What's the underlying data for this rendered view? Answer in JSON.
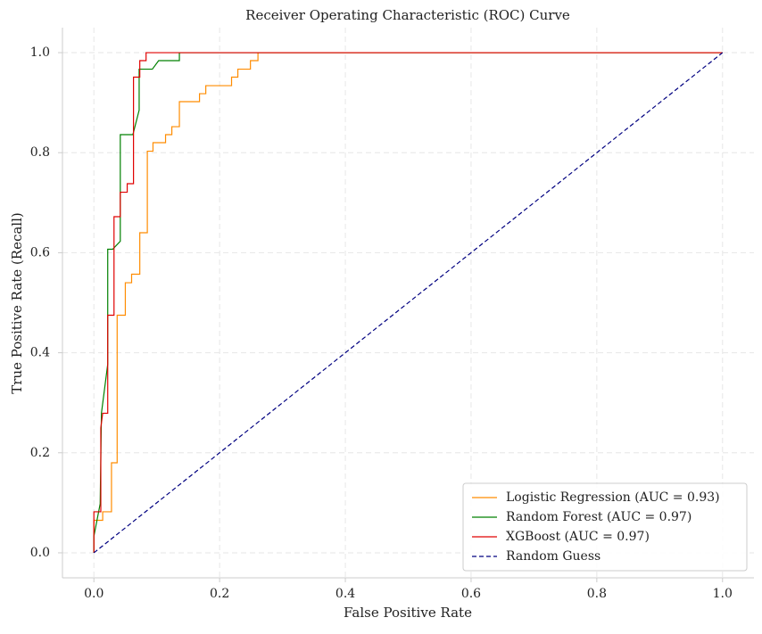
{
  "chart_data": {
    "type": "line",
    "title": "Receiver Operating Characteristic (ROC) Curve",
    "x_label": "False Positive Rate",
    "y_label": "True Positive Rate (Recall)",
    "xlim": [
      -0.05,
      1.05
    ],
    "ylim": [
      -0.05,
      1.05
    ],
    "xticks": [
      {
        "value": 0,
        "label": "0.0"
      },
      0.2,
      0.4,
      0.6,
      0.8,
      {
        "value": 1,
        "label": "1.0"
      }
    ],
    "yticks": [
      {
        "value": 0,
        "label": "0.0"
      },
      0.2,
      0.4,
      0.6,
      0.8,
      {
        "value": 1,
        "label": "1.0"
      }
    ],
    "grid": true,
    "legend": "lower right",
    "series": [
      {
        "name": "Logistic Regression (AUC = 0.93)",
        "color": "#ff8c00",
        "dash": "solid",
        "x": [
          0,
          0,
          0.014,
          0.014,
          0.028,
          0.028,
          0.037,
          0.037,
          0.05,
          0.05,
          0.06,
          0.06,
          0.073,
          0.073,
          0.085,
          0.085,
          0.094,
          0.094,
          0.114,
          0.114,
          0.124,
          0.124,
          0.136,
          0.136,
          0.168,
          0.168,
          0.178,
          0.178,
          0.219,
          0.219,
          0.229,
          0.229,
          0.249,
          0.249,
          0.261,
          0.261,
          1
        ],
        "values": [
          0,
          0.065,
          0.065,
          0.082,
          0.082,
          0.18,
          0.18,
          0.475,
          0.475,
          0.54,
          0.54,
          0.557,
          0.557,
          0.64,
          0.64,
          0.803,
          0.803,
          0.82,
          0.82,
          0.836,
          0.836,
          0.852,
          0.852,
          0.902,
          0.902,
          0.918,
          0.918,
          0.934,
          0.934,
          0.951,
          0.951,
          0.967,
          0.967,
          0.984,
          0.984,
          1,
          1
        ]
      },
      {
        "name": "Random Forest (AUC = 0.97)",
        "color": "#008000",
        "dash": "solid",
        "x": [
          0,
          0,
          0.01,
          0.012,
          0.022,
          0.022,
          0.03,
          0.042,
          0.042,
          0.062,
          0.072,
          0.072,
          0.093,
          0.103,
          0.136,
          0.136,
          1
        ],
        "values": [
          0,
          0.033,
          0.098,
          0.279,
          0.377,
          0.607,
          0.607,
          0.623,
          0.836,
          0.836,
          0.885,
          0.967,
          0.967,
          0.984,
          0.984,
          1,
          1
        ]
      },
      {
        "name": "XGBoost (AUC = 0.97)",
        "color": "#e00000",
        "dash": "solid",
        "x": [
          0,
          0,
          0.011,
          0.011,
          0.014,
          0.022,
          0.022,
          0.032,
          0.032,
          0.042,
          0.042,
          0.053,
          0.053,
          0.063,
          0.063,
          0.073,
          0.073,
          0.083,
          0.083,
          1
        ],
        "values": [
          0,
          0.082,
          0.082,
          0.25,
          0.279,
          0.279,
          0.475,
          0.475,
          0.672,
          0.672,
          0.721,
          0.721,
          0.738,
          0.738,
          0.951,
          0.951,
          0.984,
          0.984,
          1,
          1
        ]
      },
      {
        "name": "Random Guess",
        "color": "#000080",
        "dash": "dashed",
        "x": [
          0,
          1
        ],
        "values": [
          0,
          1
        ]
      }
    ]
  }
}
